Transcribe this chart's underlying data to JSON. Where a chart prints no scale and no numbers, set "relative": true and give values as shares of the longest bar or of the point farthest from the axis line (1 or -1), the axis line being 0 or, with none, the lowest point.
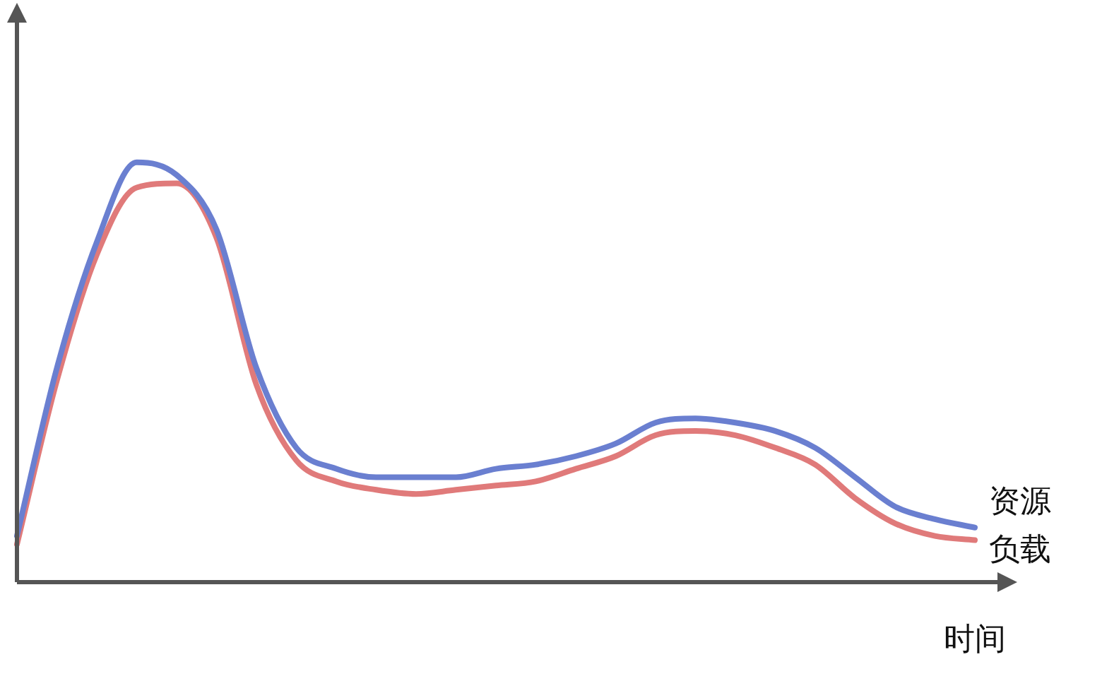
{
  "chart_data": {
    "type": "line",
    "relative": true,
    "xlabel": "时间",
    "grid": false,
    "legend": false,
    "marker": "none",
    "line_style": "solid",
    "categories": [
      null,
      null,
      null,
      null,
      null,
      null,
      null,
      null,
      null,
      null,
      null,
      null,
      null,
      null,
      null,
      null,
      null,
      null,
      null,
      null,
      null,
      null,
      null,
      null,
      null
    ],
    "series": [
      {
        "name": "资源",
        "color": "#6a7fd0",
        "values": [
          0.11,
          0.51,
          0.81,
          1,
          0.97,
          0.84,
          0.51,
          0.32,
          0.27,
          0.25,
          0.25,
          0.25,
          0.27,
          0.28,
          0.3,
          0.33,
          0.38,
          0.39,
          0.38,
          0.36,
          0.32,
          0.25,
          0.18,
          0.15,
          0.13
        ]
      },
      {
        "name": "负载",
        "color": "#e07a7a",
        "values": [
          0.09,
          0.48,
          0.78,
          0.94,
          0.95,
          0.82,
          0.47,
          0.29,
          0.24,
          0.22,
          0.21,
          0.22,
          0.23,
          0.24,
          0.27,
          0.3,
          0.35,
          0.36,
          0.35,
          0.32,
          0.28,
          0.2,
          0.14,
          0.11,
          0.1
        ]
      }
    ]
  }
}
